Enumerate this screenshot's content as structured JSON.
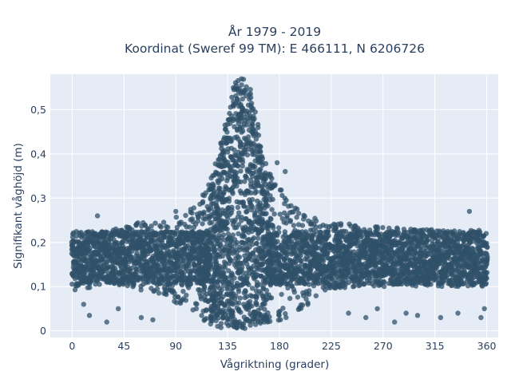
{
  "chart_data": {
    "type": "scatter",
    "title_line1": "År 1979 - 2019",
    "title_line2": "Koordinat (Sweref 99 TM): E 466111, N 6206726",
    "xlabel": "Vågriktning (grader)",
    "ylabel": "Signifikant våghöjd (m)",
    "xlim": [
      -19,
      370
    ],
    "ylim": [
      -0.015,
      0.58
    ],
    "x_ticks": [
      0,
      45,
      90,
      135,
      180,
      225,
      270,
      315,
      360
    ],
    "y_ticks": [
      0,
      0.1,
      0.2,
      0.3,
      0.4,
      0.5
    ],
    "y_tick_labels": [
      "0",
      "0,1",
      "0,2",
      "0,3",
      "0,4",
      "0,5"
    ],
    "grid": true,
    "marker_color": "#2f5068",
    "plot_bg": "#e5ecf6",
    "series": [
      {
        "values_note": "",
        "x": [
          0,
          10,
          20,
          30,
          45,
          60,
          80,
          100,
          115,
          125,
          132,
          137,
          142,
          148,
          152,
          158,
          165,
          175,
          190,
          205,
          225,
          250,
          270,
          300,
          330,
          350,
          360
        ],
        "y_upper": [
          0.23,
          0.225,
          0.23,
          0.235,
          0.24,
          0.245,
          0.25,
          0.27,
          0.31,
          0.38,
          0.45,
          0.52,
          0.57,
          0.57,
          0.57,
          0.52,
          0.4,
          0.34,
          0.3,
          0.26,
          0.25,
          0.24,
          0.235,
          0.23,
          0.23,
          0.23,
          0.22
        ],
        "y_lower": [
          0.09,
          0.09,
          0.1,
          0.11,
          0.1,
          0.09,
          0.08,
          0.05,
          0.02,
          0.01,
          0.005,
          0.005,
          0.005,
          0.005,
          0.005,
          0.01,
          0.015,
          0.02,
          0.03,
          0.06,
          0.09,
          0.1,
          0.1,
          0.1,
          0.1,
          0.1,
          0.1
        ]
      }
    ],
    "outliers": [
      [
        22,
        0.26
      ],
      [
        90,
        0.27
      ],
      [
        120,
        0.3
      ],
      [
        125,
        0.29
      ],
      [
        128,
        0.34
      ],
      [
        152,
        0.365
      ],
      [
        185,
        0.36
      ],
      [
        178,
        0.38
      ],
      [
        345,
        0.27
      ],
      [
        10,
        0.06
      ],
      [
        15,
        0.035
      ],
      [
        30,
        0.02
      ],
      [
        40,
        0.05
      ],
      [
        60,
        0.03
      ],
      [
        70,
        0.025
      ],
      [
        240,
        0.04
      ],
      [
        255,
        0.03
      ],
      [
        265,
        0.05
      ],
      [
        280,
        0.02
      ],
      [
        290,
        0.04
      ],
      [
        300,
        0.035
      ],
      [
        320,
        0.03
      ],
      [
        335,
        0.04
      ],
      [
        355,
        0.03
      ],
      [
        358,
        0.05
      ]
    ]
  }
}
